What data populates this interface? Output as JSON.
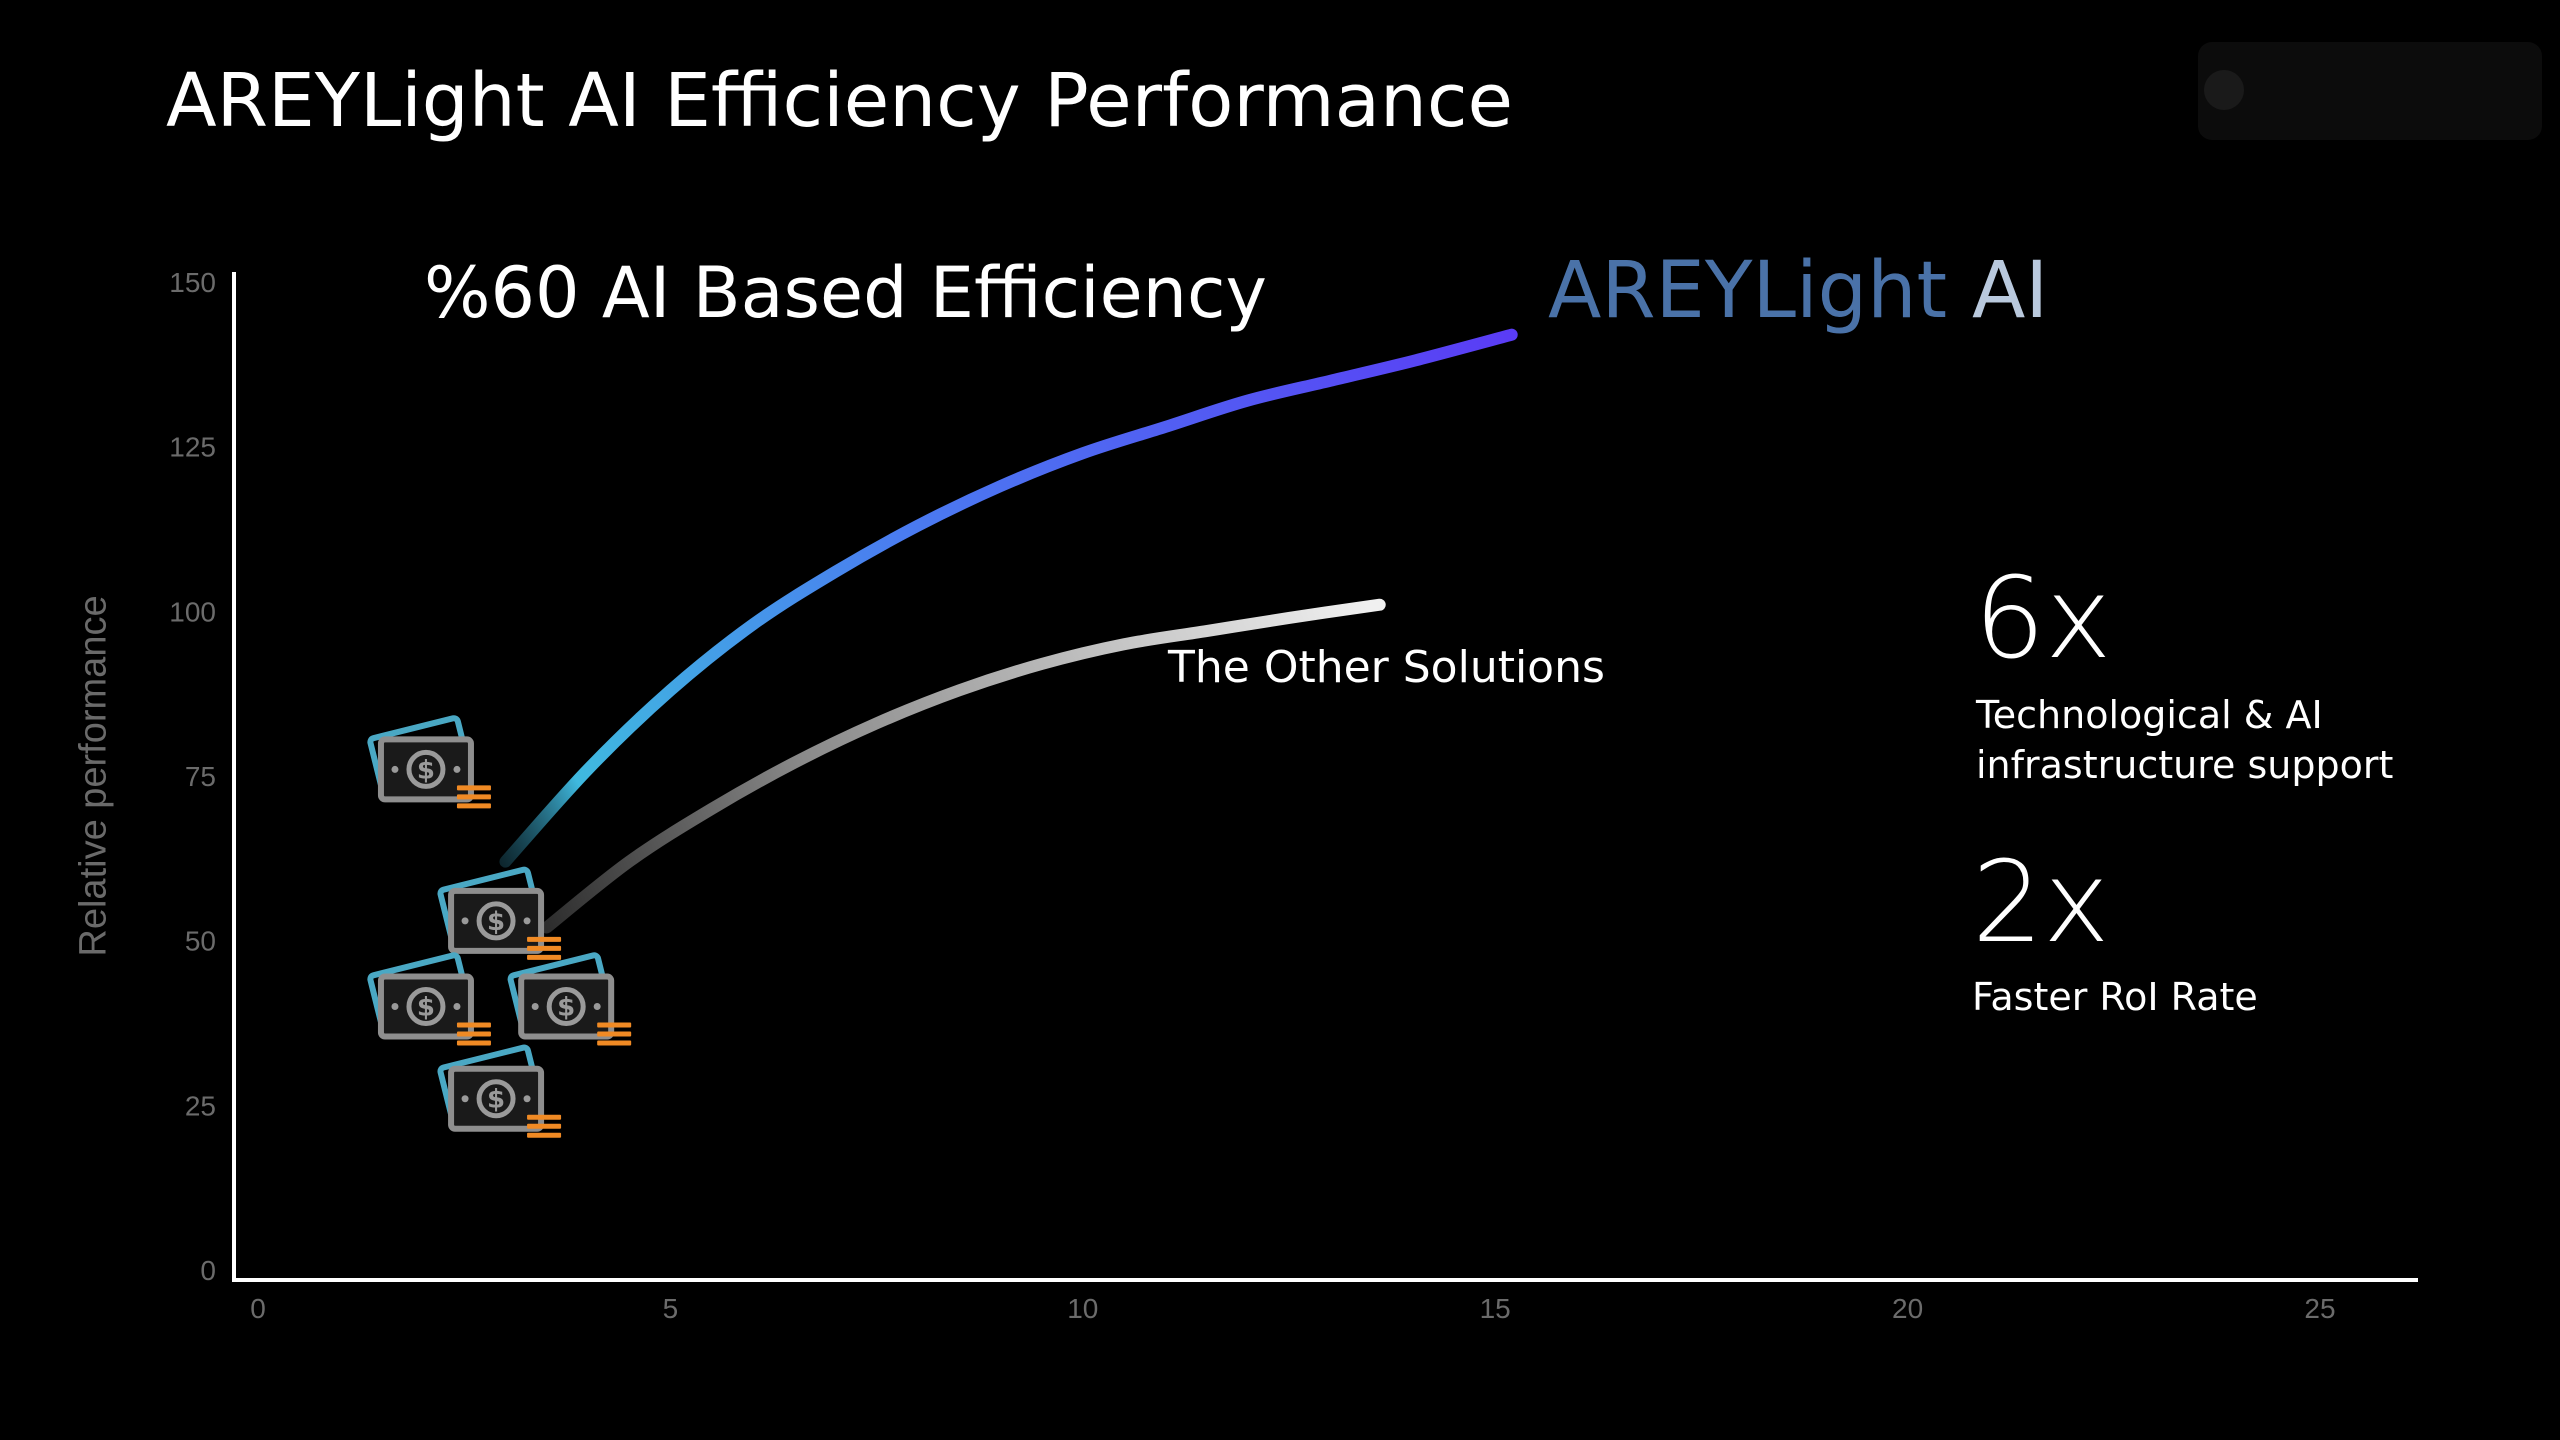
{
  "slide": {
    "title": "AREYLight AI Efficiency Performance",
    "subtitle": "%60 AI Based Efficiency",
    "brand_part1": "AREYLight",
    "brand_part2": "AI",
    "other_label": "The Other Solutions",
    "stats": [
      {
        "value": "6x",
        "line1": "Technological & AI",
        "line2": "infrastructure support"
      },
      {
        "value": "2x",
        "line1": "Faster RoI Rate",
        "line2": ""
      }
    ],
    "money_icon": "money-stack-icon",
    "colors": {
      "background": "#000000",
      "ai_curve_start": "#3fb9df",
      "ai_curve_end": "#5a3cf5",
      "other_curve_start": "#3a3a3a",
      "other_curve_end": "#e8e8e8",
      "brand_dark": "#4a72a8",
      "brand_light": "#b9c9dd",
      "coin_orange": "#f08a24",
      "bill_teal": "#4aa8c4"
    }
  },
  "chart_data": {
    "type": "line",
    "ylabel": "Relative performance",
    "xlabel": "",
    "xlim": [
      0,
      25
    ],
    "ylim": [
      0,
      150
    ],
    "x_ticks": [
      0,
      5,
      10,
      15,
      20,
      25
    ],
    "y_ticks": [
      0,
      25,
      50,
      75,
      100,
      125,
      150
    ],
    "grid": false,
    "series": [
      {
        "name": "AREYLight AI",
        "x": [
          3.0,
          4.0,
          5.0,
          6.0,
          7.0,
          8.0,
          9.0,
          10.0,
          11.0,
          12.0,
          13.0,
          14.0,
          15.2
        ],
        "y": [
          62,
          76,
          88,
          98,
          106,
          113,
          119,
          124,
          128,
          132,
          135,
          138,
          142
        ]
      },
      {
        "name": "The Other Solutions",
        "x": [
          3.5,
          4.5,
          5.5,
          6.5,
          7.5,
          8.5,
          9.5,
          10.5,
          11.5,
          12.5,
          13.6
        ],
        "y": [
          52,
          62,
          70,
          77,
          83,
          88,
          92,
          95,
          97,
          99,
          101
        ]
      }
    ],
    "money_icons": [
      {
        "x": 2.0,
        "y": 76
      },
      {
        "x": 2.85,
        "y": 53
      },
      {
        "x": 2.0,
        "y": 40
      },
      {
        "x": 3.7,
        "y": 40
      },
      {
        "x": 2.85,
        "y": 26
      }
    ]
  }
}
